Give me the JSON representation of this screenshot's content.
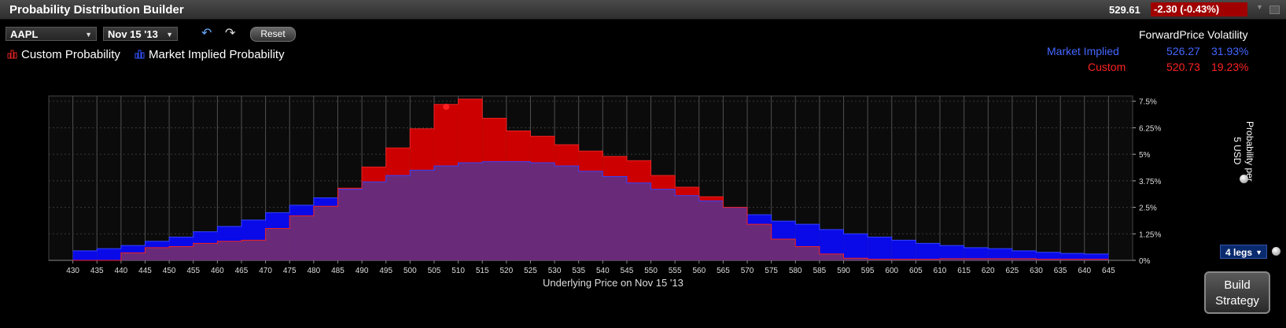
{
  "titlebar": {
    "title": "Probability Distribution Builder",
    "last_price": "529.61",
    "change": "-2.30 (-0.43%)"
  },
  "toolbar": {
    "symbol": "AAPL",
    "expiry": "Nov 15 '13",
    "reset_label": "Reset",
    "undo_icon": "undo-icon",
    "redo_icon": "redo-icon"
  },
  "legend": {
    "custom_label": "Custom Probability",
    "market_label": "Market Implied Probability"
  },
  "forward_table": {
    "header": "ForwardPrice Volatility",
    "rows": [
      {
        "label": "Market Implied",
        "forward": "526.27",
        "volatility": "31.93%",
        "color": "#4466ff"
      },
      {
        "label": "Custom",
        "forward": "520.73",
        "volatility": "19.23%",
        "color": "#ff2222"
      }
    ]
  },
  "side": {
    "ylabel": "Probability per 5 USD",
    "legs_label": "4 legs",
    "build_label": "Build Strategy"
  },
  "colors": {
    "custom": "#cc0000",
    "market": "#0a0ae8",
    "overlap": "#6a2a7a"
  },
  "chart_data": {
    "type": "bar",
    "xlabel": "Underlying Price on Nov 15 '13",
    "ylabel": "Probability per 5 USD",
    "x": [
      430,
      435,
      440,
      445,
      450,
      455,
      460,
      465,
      470,
      475,
      480,
      485,
      490,
      495,
      500,
      505,
      510,
      515,
      520,
      525,
      530,
      535,
      540,
      545,
      550,
      555,
      560,
      565,
      570,
      575,
      580,
      585,
      590,
      595,
      600,
      605,
      610,
      615,
      620,
      625,
      630,
      635,
      640,
      645
    ],
    "ylim": [
      0,
      7.75
    ],
    "yticks": [
      "0%",
      "1.25%",
      "2.5%",
      "3.75%",
      "5%",
      "6.25%",
      "7.5%"
    ],
    "custom_marker_x": 507.5,
    "series": [
      {
        "name": "Market Implied Probability",
        "values": [
          0.45,
          0.55,
          0.7,
          0.9,
          1.1,
          1.35,
          1.6,
          1.9,
          2.25,
          2.6,
          2.95,
          3.35,
          3.7,
          4.0,
          4.25,
          4.45,
          4.6,
          4.65,
          4.65,
          4.6,
          4.45,
          4.2,
          3.95,
          3.65,
          3.35,
          3.05,
          2.8,
          2.5,
          2.15,
          1.85,
          1.7,
          1.45,
          1.25,
          1.1,
          0.95,
          0.8,
          0.7,
          0.6,
          0.55,
          0.45,
          0.38,
          0.33,
          0.3,
          0
        ]
      },
      {
        "name": "Custom Probability",
        "values": [
          0,
          0,
          0.35,
          0.6,
          0.65,
          0.8,
          0.9,
          0.95,
          1.5,
          2.1,
          2.55,
          3.4,
          4.4,
          5.3,
          6.2,
          7.35,
          7.6,
          6.7,
          6.1,
          5.85,
          5.45,
          5.15,
          4.9,
          4.7,
          4.0,
          3.45,
          3.0,
          2.5,
          1.7,
          1.0,
          0.65,
          0.3,
          0.1,
          0.05,
          0.05,
          0.05,
          0.08,
          0.08,
          0.08,
          0.08,
          0.05,
          0.05,
          0.05,
          0
        ]
      }
    ]
  }
}
